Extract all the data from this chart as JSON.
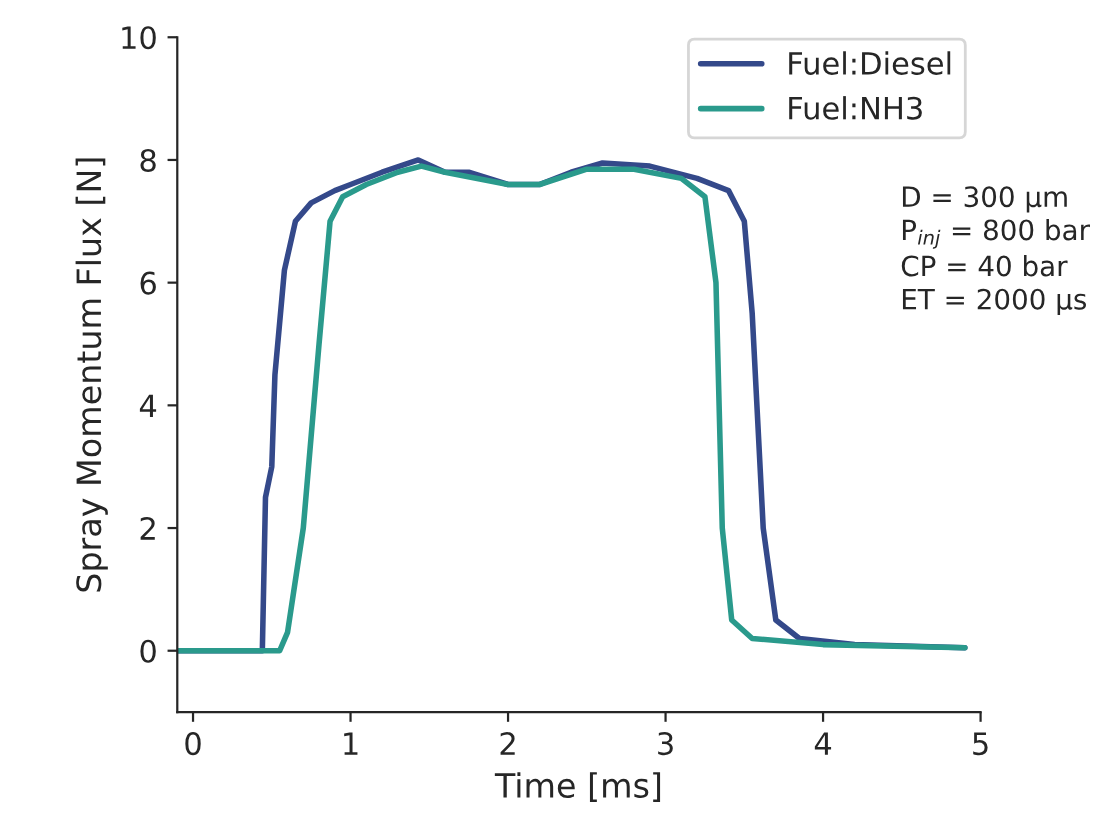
{
  "chart_data": {
    "type": "line",
    "xlabel": "Time [ms]",
    "ylabel": "Spray Momentum Flux [N]",
    "xlim": [
      -0.1,
      5
    ],
    "ylim": [
      -1,
      10
    ],
    "xticks": [
      0,
      1,
      2,
      3,
      4,
      5
    ],
    "yticks": [
      0,
      2,
      4,
      6,
      8,
      10
    ],
    "grid": false,
    "legend": "top right",
    "annotations": [
      "D = 300 μm\nP$_{inj}$ = 800 bar\nCP = 40 bar\nET = 2000 μs"
    ],
    "series": [
      {
        "name": "Fuel:Diesel",
        "color": "#34498a",
        "x": [
          -0.1,
          0.3,
          0.44,
          0.46,
          0.5,
          0.52,
          0.58,
          0.65,
          0.75,
          0.9,
          1.0,
          1.2,
          1.43,
          1.6,
          1.75,
          2.0,
          2.2,
          2.4,
          2.6,
          2.9,
          3.2,
          3.4,
          3.5,
          3.55,
          3.62,
          3.7,
          3.85,
          4.2,
          4.9
        ],
        "values": [
          0,
          0,
          0,
          2.5,
          3,
          4.5,
          6.2,
          7.0,
          7.3,
          7.5,
          7.6,
          7.8,
          8.0,
          7.8,
          7.8,
          7.6,
          7.6,
          7.8,
          7.95,
          7.9,
          7.7,
          7.5,
          7.0,
          5.5,
          2,
          0.5,
          0.2,
          0.1,
          0.05
        ]
      },
      {
        "name": "Fuel:NH3",
        "color": "#2a9a8c",
        "x": [
          -0.1,
          0.3,
          0.55,
          0.6,
          0.7,
          0.8,
          0.87,
          0.95,
          1.1,
          1.3,
          1.45,
          1.6,
          2.0,
          2.2,
          2.5,
          2.8,
          3.1,
          3.25,
          3.32,
          3.36,
          3.42,
          3.55,
          4.0,
          4.9
        ],
        "values": [
          0,
          0,
          0,
          0.3,
          2,
          5,
          7,
          7.4,
          7.6,
          7.8,
          7.9,
          7.8,
          7.6,
          7.6,
          7.85,
          7.85,
          7.7,
          7.4,
          6,
          2,
          0.5,
          0.2,
          0.1,
          0.05
        ]
      }
    ]
  }
}
